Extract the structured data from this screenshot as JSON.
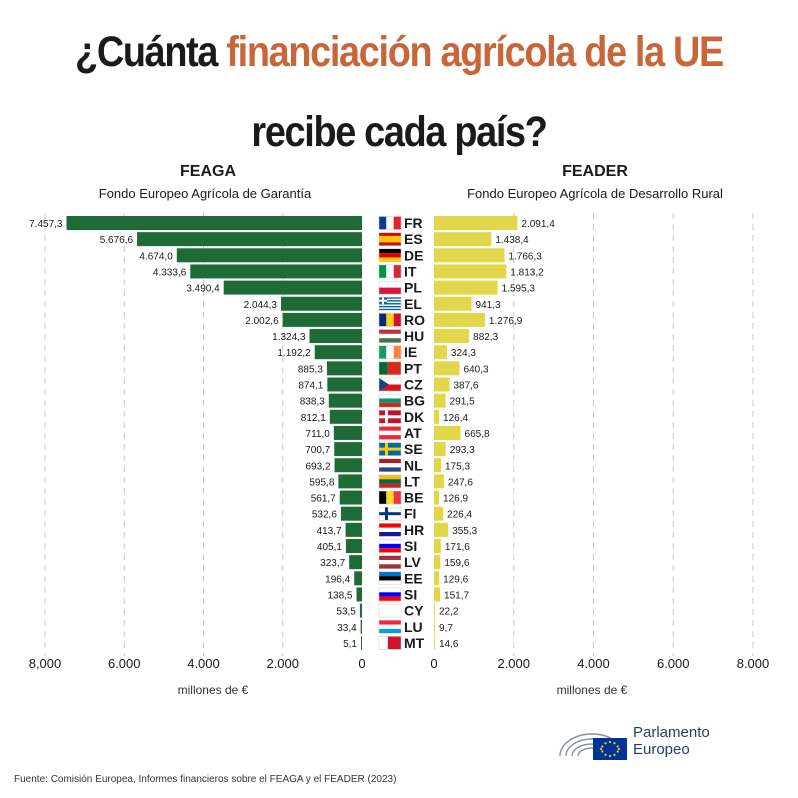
{
  "title": {
    "part1": "¿Cuánta ",
    "part2": "financiación agrícola de la UE",
    "line2": "recibe cada país?"
  },
  "left_panel": {
    "title": "FEAGA",
    "subtitle": "Fondo Europeo Agrícola de Garantía",
    "unit": "millones de €"
  },
  "right_panel": {
    "title": "FEADER",
    "subtitle": "Fondo Europeo Agrícola de Desarrollo Rural",
    "unit": "millones de €"
  },
  "source": "Fuente: Comisión Europea, Informes financieros sobre el FEAGA y el FEADER (2023)",
  "logo": {
    "line1": "Parlamento",
    "line2": "Europeo"
  },
  "colors": {
    "feaga": "#1f6b37",
    "feader": "#e2d64a",
    "accent": "#c8663a",
    "grid": "#c8c8c8"
  },
  "chart_data": {
    "type": "bar",
    "orientation": "horizontal-back-to-back",
    "categories": [
      "FR",
      "ES",
      "DE",
      "IT",
      "PL",
      "EL",
      "RO",
      "HU",
      "IE",
      "PT",
      "CZ",
      "BG",
      "DK",
      "AT",
      "SE",
      "NL",
      "LT",
      "BE",
      "FI",
      "HR",
      "SI",
      "LV",
      "EE",
      "SI",
      "CY",
      "LU",
      "MT"
    ],
    "series": [
      {
        "name": "FEAGA",
        "values": [
          7457.3,
          5676.6,
          4674.0,
          4333.6,
          3490.4,
          2044.3,
          2002.6,
          1324.3,
          1192.2,
          885.3,
          874.1,
          838.3,
          812.1,
          711.0,
          700.7,
          693.2,
          595.8,
          561.7,
          532.6,
          413.7,
          405.1,
          323.7,
          196.4,
          138.5,
          53.5,
          33.4,
          5.1
        ],
        "labels": [
          "7.457,3",
          "5.676,6",
          "4.674,0",
          "4.333,6",
          "3.490,4",
          "2.044,3",
          "2.002,6",
          "1.324,3",
          "1.192,2",
          "885,3",
          "874,1",
          "838,3",
          "812,1",
          "711,0",
          "700,7",
          "693,2",
          "595,8",
          "561,7",
          "532,6",
          "413,7",
          "405,1",
          "323,7",
          "196,4",
          "138,5",
          "53,5",
          "33,4",
          "5,1"
        ]
      },
      {
        "name": "FEADER",
        "values": [
          2091.4,
          1438.4,
          1766.3,
          1813.2,
          1595.3,
          941.3,
          1276.9,
          882.3,
          324.3,
          640.3,
          387.6,
          291.5,
          126.4,
          665.8,
          293.3,
          175.3,
          247.6,
          126.9,
          226.4,
          355.3,
          171.6,
          159.6,
          129.6,
          151.7,
          22.2,
          9.7,
          14.6
        ],
        "labels": [
          "2.091,4",
          "1.438,4",
          "1.766,3",
          "1.813,2",
          "1.595,3",
          "941,3",
          "1.276,9",
          "882,3",
          "324,3",
          "640,3",
          "387,6",
          "291,5",
          "126,4",
          "665,8",
          "293,3",
          "175,3",
          "247,6",
          "126,9",
          "226,4",
          "355,3",
          "171,6",
          "159,6",
          "129,6",
          "151,7",
          "22,2",
          "9,7",
          "14,6"
        ]
      }
    ],
    "xlim": [
      0,
      8000
    ],
    "left_ticks": [
      "8,000",
      "6.000",
      "4.000",
      "2.000",
      "0"
    ],
    "right_ticks": [
      "0",
      "2.000",
      "4.000",
      "6.000",
      "8.000"
    ],
    "grid": true
  }
}
